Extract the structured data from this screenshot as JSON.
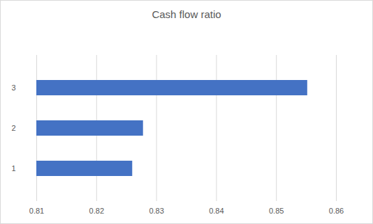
{
  "chart_data": {
    "type": "bar",
    "title": "Cash flow ratio",
    "orientation": "horizontal",
    "categories": [
      "1",
      "2",
      "3"
    ],
    "values": [
      0.826,
      0.8278,
      0.8552
    ],
    "color": "#4472c4",
    "xlim": [
      0.81,
      0.86
    ],
    "xticks": [
      0.81,
      0.82,
      0.83,
      0.84,
      0.85,
      0.86
    ],
    "grid": true
  }
}
